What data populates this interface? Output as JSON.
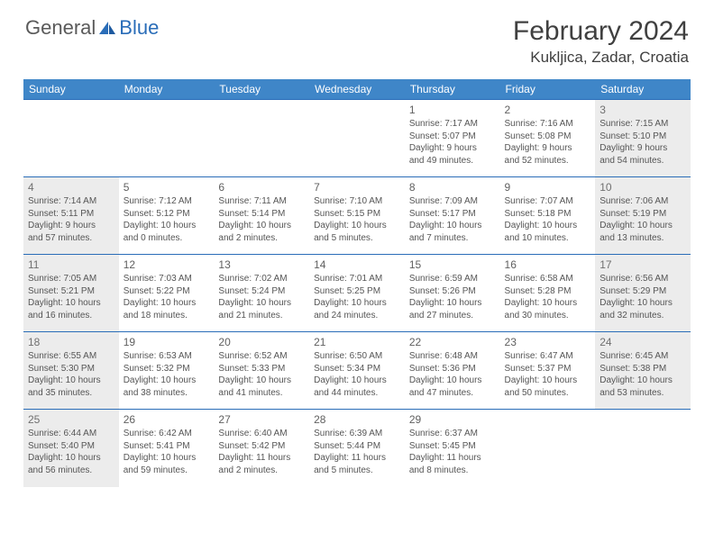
{
  "logo": {
    "text1": "General",
    "text2": "Blue"
  },
  "title": "February 2024",
  "location": "Kukljica, Zadar, Croatia",
  "colors": {
    "header_bg": "#3f86c8",
    "header_text": "#ffffff",
    "row_border": "#2a6db8",
    "weekend_bg": "#ececec",
    "logo_blue": "#2a6db8",
    "logo_gray": "#5a5a5a",
    "body_text": "#555555"
  },
  "day_names": [
    "Sunday",
    "Monday",
    "Tuesday",
    "Wednesday",
    "Thursday",
    "Friday",
    "Saturday"
  ],
  "weeks": [
    [
      {
        "blank": true
      },
      {
        "blank": true
      },
      {
        "blank": true
      },
      {
        "blank": true
      },
      {
        "day": "1",
        "sunrise": "7:17 AM",
        "sunset": "5:07 PM",
        "daylight_a": "Daylight: 9 hours",
        "daylight_b": "and 49 minutes."
      },
      {
        "day": "2",
        "sunrise": "7:16 AM",
        "sunset": "5:08 PM",
        "daylight_a": "Daylight: 9 hours",
        "daylight_b": "and 52 minutes."
      },
      {
        "day": "3",
        "shaded": true,
        "sunrise": "7:15 AM",
        "sunset": "5:10 PM",
        "daylight_a": "Daylight: 9 hours",
        "daylight_b": "and 54 minutes."
      }
    ],
    [
      {
        "day": "4",
        "shaded": true,
        "sunrise": "7:14 AM",
        "sunset": "5:11 PM",
        "daylight_a": "Daylight: 9 hours",
        "daylight_b": "and 57 minutes."
      },
      {
        "day": "5",
        "sunrise": "7:12 AM",
        "sunset": "5:12 PM",
        "daylight_a": "Daylight: 10 hours",
        "daylight_b": "and 0 minutes."
      },
      {
        "day": "6",
        "sunrise": "7:11 AM",
        "sunset": "5:14 PM",
        "daylight_a": "Daylight: 10 hours",
        "daylight_b": "and 2 minutes."
      },
      {
        "day": "7",
        "sunrise": "7:10 AM",
        "sunset": "5:15 PM",
        "daylight_a": "Daylight: 10 hours",
        "daylight_b": "and 5 minutes."
      },
      {
        "day": "8",
        "sunrise": "7:09 AM",
        "sunset": "5:17 PM",
        "daylight_a": "Daylight: 10 hours",
        "daylight_b": "and 7 minutes."
      },
      {
        "day": "9",
        "sunrise": "7:07 AM",
        "sunset": "5:18 PM",
        "daylight_a": "Daylight: 10 hours",
        "daylight_b": "and 10 minutes."
      },
      {
        "day": "10",
        "shaded": true,
        "sunrise": "7:06 AM",
        "sunset": "5:19 PM",
        "daylight_a": "Daylight: 10 hours",
        "daylight_b": "and 13 minutes."
      }
    ],
    [
      {
        "day": "11",
        "shaded": true,
        "sunrise": "7:05 AM",
        "sunset": "5:21 PM",
        "daylight_a": "Daylight: 10 hours",
        "daylight_b": "and 16 minutes."
      },
      {
        "day": "12",
        "sunrise": "7:03 AM",
        "sunset": "5:22 PM",
        "daylight_a": "Daylight: 10 hours",
        "daylight_b": "and 18 minutes."
      },
      {
        "day": "13",
        "sunrise": "7:02 AM",
        "sunset": "5:24 PM",
        "daylight_a": "Daylight: 10 hours",
        "daylight_b": "and 21 minutes."
      },
      {
        "day": "14",
        "sunrise": "7:01 AM",
        "sunset": "5:25 PM",
        "daylight_a": "Daylight: 10 hours",
        "daylight_b": "and 24 minutes."
      },
      {
        "day": "15",
        "sunrise": "6:59 AM",
        "sunset": "5:26 PM",
        "daylight_a": "Daylight: 10 hours",
        "daylight_b": "and 27 minutes."
      },
      {
        "day": "16",
        "sunrise": "6:58 AM",
        "sunset": "5:28 PM",
        "daylight_a": "Daylight: 10 hours",
        "daylight_b": "and 30 minutes."
      },
      {
        "day": "17",
        "shaded": true,
        "sunrise": "6:56 AM",
        "sunset": "5:29 PM",
        "daylight_a": "Daylight: 10 hours",
        "daylight_b": "and 32 minutes."
      }
    ],
    [
      {
        "day": "18",
        "shaded": true,
        "sunrise": "6:55 AM",
        "sunset": "5:30 PM",
        "daylight_a": "Daylight: 10 hours",
        "daylight_b": "and 35 minutes."
      },
      {
        "day": "19",
        "sunrise": "6:53 AM",
        "sunset": "5:32 PM",
        "daylight_a": "Daylight: 10 hours",
        "daylight_b": "and 38 minutes."
      },
      {
        "day": "20",
        "sunrise": "6:52 AM",
        "sunset": "5:33 PM",
        "daylight_a": "Daylight: 10 hours",
        "daylight_b": "and 41 minutes."
      },
      {
        "day": "21",
        "sunrise": "6:50 AM",
        "sunset": "5:34 PM",
        "daylight_a": "Daylight: 10 hours",
        "daylight_b": "and 44 minutes."
      },
      {
        "day": "22",
        "sunrise": "6:48 AM",
        "sunset": "5:36 PM",
        "daylight_a": "Daylight: 10 hours",
        "daylight_b": "and 47 minutes."
      },
      {
        "day": "23",
        "sunrise": "6:47 AM",
        "sunset": "5:37 PM",
        "daylight_a": "Daylight: 10 hours",
        "daylight_b": "and 50 minutes."
      },
      {
        "day": "24",
        "shaded": true,
        "sunrise": "6:45 AM",
        "sunset": "5:38 PM",
        "daylight_a": "Daylight: 10 hours",
        "daylight_b": "and 53 minutes."
      }
    ],
    [
      {
        "day": "25",
        "shaded": true,
        "sunrise": "6:44 AM",
        "sunset": "5:40 PM",
        "daylight_a": "Daylight: 10 hours",
        "daylight_b": "and 56 minutes."
      },
      {
        "day": "26",
        "sunrise": "6:42 AM",
        "sunset": "5:41 PM",
        "daylight_a": "Daylight: 10 hours",
        "daylight_b": "and 59 minutes."
      },
      {
        "day": "27",
        "sunrise": "6:40 AM",
        "sunset": "5:42 PM",
        "daylight_a": "Daylight: 11 hours",
        "daylight_b": "and 2 minutes."
      },
      {
        "day": "28",
        "sunrise": "6:39 AM",
        "sunset": "5:44 PM",
        "daylight_a": "Daylight: 11 hours",
        "daylight_b": "and 5 minutes."
      },
      {
        "day": "29",
        "sunrise": "6:37 AM",
        "sunset": "5:45 PM",
        "daylight_a": "Daylight: 11 hours",
        "daylight_b": "and 8 minutes."
      },
      {
        "blank": true
      },
      {
        "blank": true
      }
    ]
  ],
  "labels": {
    "sunrise": "Sunrise: ",
    "sunset": "Sunset: "
  }
}
